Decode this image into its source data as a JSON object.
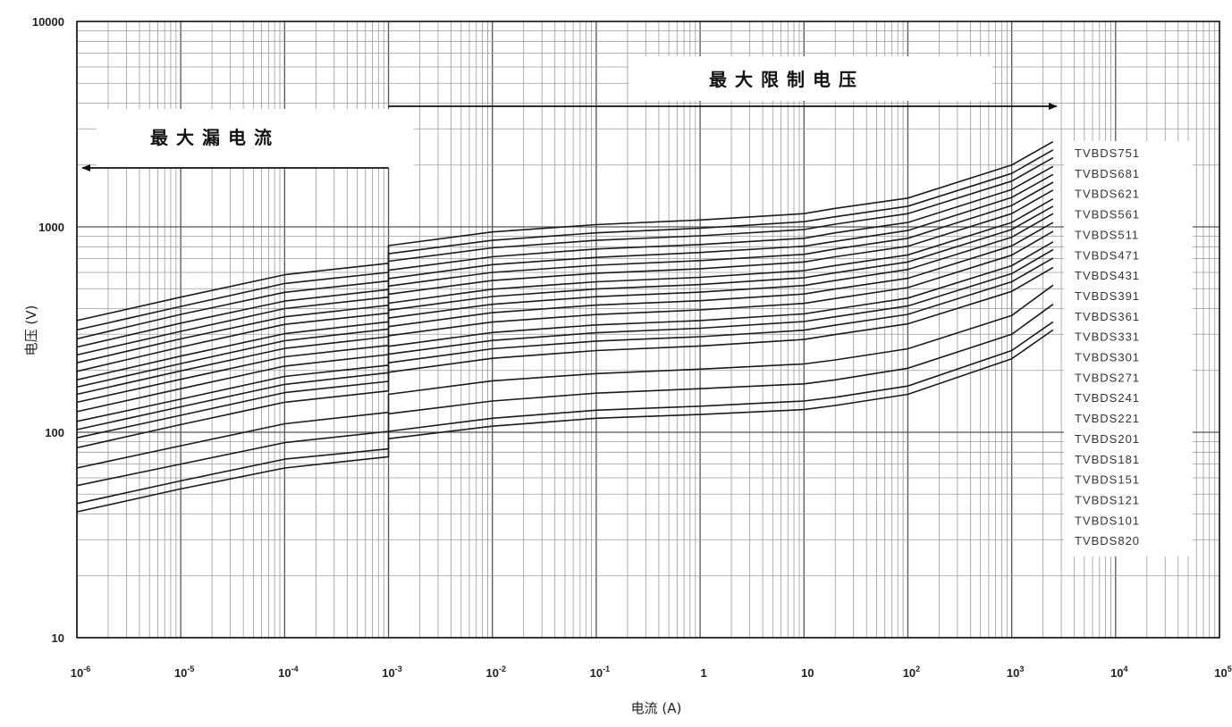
{
  "chart_data": {
    "type": "line",
    "title": "",
    "xlabel": "电流 (A)",
    "ylabel": "电压 (V)",
    "x_scale": "log",
    "y_scale": "log",
    "xlim": [
      1e-06,
      100000.0
    ],
    "ylim": [
      10,
      10000
    ],
    "grid": true,
    "x_ticks": [
      {
        "v": 1e-06,
        "base": "10",
        "exp": "-6"
      },
      {
        "v": 1e-05,
        "base": "10",
        "exp": "-5"
      },
      {
        "v": 0.0001,
        "base": "10",
        "exp": "-4"
      },
      {
        "v": 0.001,
        "base": "10",
        "exp": "-3"
      },
      {
        "v": 0.01,
        "base": "10",
        "exp": "-2"
      },
      {
        "v": 0.1,
        "base": "10",
        "exp": "-1"
      },
      {
        "v": 1,
        "base": "1",
        "exp": ""
      },
      {
        "v": 10,
        "base": "10",
        "exp": ""
      },
      {
        "v": 100,
        "base": "10",
        "exp": "2"
      },
      {
        "v": 1000,
        "base": "10",
        "exp": "3"
      },
      {
        "v": 10000,
        "base": "10",
        "exp": "4"
      },
      {
        "v": 100000,
        "base": "10",
        "exp": "5"
      }
    ],
    "y_ticks": [
      {
        "v": 10,
        "label": "10"
      },
      {
        "v": 100,
        "label": "100"
      },
      {
        "v": 1000,
        "label": "1000"
      },
      {
        "v": 10000,
        "label": "10000"
      }
    ],
    "x": [
      1e-06,
      1e-05,
      0.0001,
      0.001,
      0.001,
      0.01,
      0.1,
      1,
      10,
      20,
      100,
      1000,
      2500
    ],
    "series": [
      {
        "name": "TVBDS751",
        "values": [
          350,
          455,
          585,
          665,
          810,
          945,
          1025,
          1080,
          1160,
          1230,
          1380,
          2000,
          2600
        ]
      },
      {
        "name": "TVBDS681",
        "values": [
          315,
          410,
          530,
          600,
          740,
          860,
          935,
          985,
          1060,
          1120,
          1260,
          1820,
          2370
        ]
      },
      {
        "name": "TVBDS621",
        "values": [
          285,
          375,
          480,
          545,
          680,
          790,
          860,
          905,
          970,
          1030,
          1160,
          1670,
          2170
        ]
      },
      {
        "name": "TVBDS561",
        "values": [
          260,
          340,
          435,
          495,
          615,
          715,
          780,
          820,
          880,
          935,
          1050,
          1520,
          1970
        ]
      },
      {
        "name": "TVBDS511",
        "values": [
          238,
          310,
          400,
          455,
          560,
          655,
          710,
          750,
          805,
          850,
          960,
          1390,
          1800
        ]
      },
      {
        "name": "TVBDS471",
        "values": [
          218,
          285,
          365,
          415,
          515,
          600,
          650,
          685,
          735,
          780,
          880,
          1270,
          1650
        ]
      },
      {
        "name": "TVBDS431",
        "values": [
          198,
          260,
          335,
          380,
          470,
          548,
          595,
          625,
          675,
          715,
          805,
          1160,
          1510
        ]
      },
      {
        "name": "TVBDS391",
        "values": [
          180,
          235,
          302,
          345,
          425,
          497,
          540,
          568,
          612,
          648,
          730,
          1050,
          1370
        ]
      },
      {
        "name": "TVBDS361",
        "values": [
          166,
          216,
          279,
          318,
          393,
          458,
          498,
          524,
          565,
          598,
          675,
          970,
          1260
        ]
      },
      {
        "name": "TVBDS331",
        "values": [
          153,
          199,
          256,
          292,
          360,
          420,
          457,
          481,
          518,
          548,
          620,
          890,
          1160
        ]
      },
      {
        "name": "TVBDS301",
        "values": [
          140,
          181,
          233,
          265,
          327,
          382,
          416,
          437,
          471,
          498,
          562,
          808,
          1050
        ]
      },
      {
        "name": "TVBDS271",
        "values": [
          126,
          163,
          210,
          239,
          295,
          344,
          374,
          394,
          424,
          448,
          506,
          728,
          950
        ]
      },
      {
        "name": "TVBDS241",
        "values": [
          113,
          145,
          187,
          212,
          262,
          306,
          333,
          350,
          377,
          398,
          450,
          647,
          845
        ]
      },
      {
        "name": "TVBDS221",
        "values": [
          103,
          133,
          171,
          195,
          240,
          280,
          305,
          321,
          346,
          365,
          412,
          592,
          775
        ]
      },
      {
        "name": "TVBDS201",
        "values": [
          94,
          121,
          156,
          177,
          218,
          255,
          278,
          292,
          314,
          332,
          375,
          540,
          705
        ]
      },
      {
        "name": "TVBDS181",
        "values": [
          84,
          109,
          140,
          159,
          196,
          229,
          250,
          263,
          283,
          299,
          337,
          485,
          635
        ]
      },
      {
        "name": "TVBDS151",
        "values": [
          67,
          86,
          110,
          125,
          153,
          178,
          193,
          203,
          215,
          225,
          255,
          370,
          520
        ]
      },
      {
        "name": "TVBDS121",
        "values": [
          55,
          70,
          89,
          101,
          123,
          142,
          155,
          163,
          172,
          180,
          205,
          300,
          420
        ]
      },
      {
        "name": "TVBDS101",
        "values": [
          45,
          58,
          74,
          83,
          101,
          117,
          128,
          134,
          142,
          148,
          168,
          250,
          345
        ]
      },
      {
        "name": "TVBDS820",
        "values": [
          41,
          53,
          67,
          76,
          93,
          107,
          117,
          122,
          129,
          135,
          153,
          228,
          315
        ]
      }
    ],
    "annotations": [
      {
        "text": "最大漏电流",
        "arrow": "left",
        "x_from": 0.001,
        "x_to": 1e-06
      },
      {
        "text": "最大限制电压",
        "arrow": "right",
        "x_from": 0.001,
        "x_to": 2500
      }
    ],
    "legend_position": "right"
  }
}
